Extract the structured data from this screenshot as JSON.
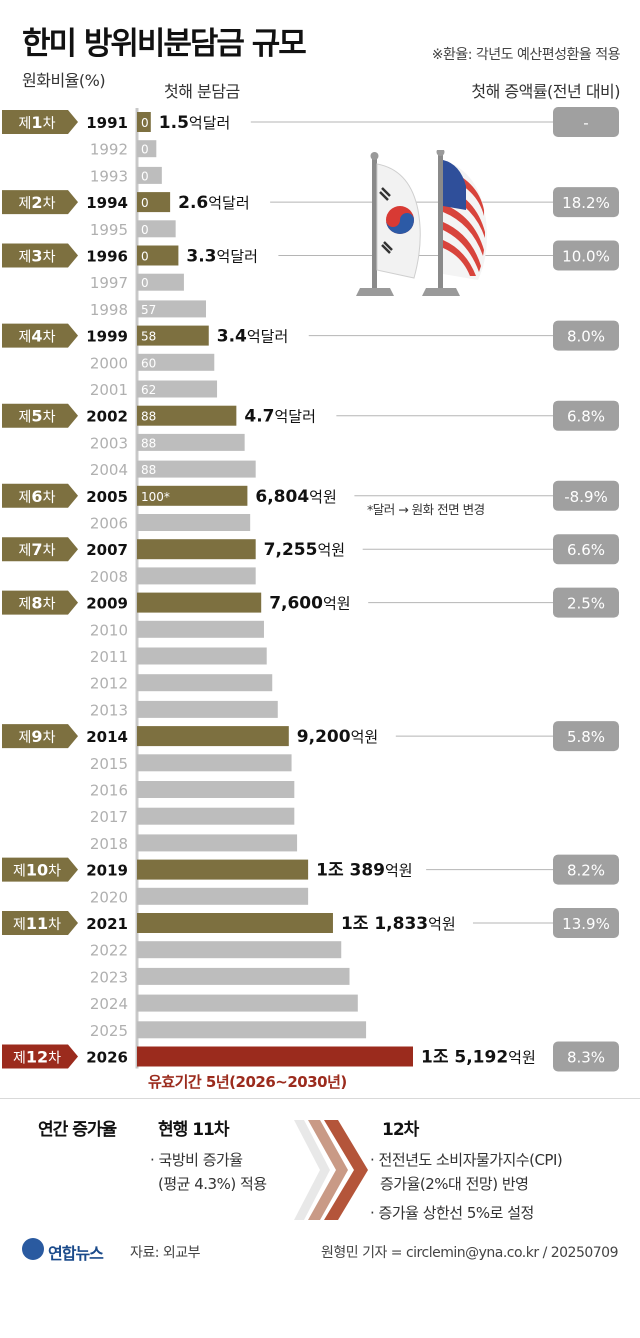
{
  "title": "한미 방위비분담금 규모",
  "exchange_note": "※환율: 각년도 예산편성환율 적용",
  "headers": {
    "won_ratio": "원화비율(%)",
    "first_year_amount": "첫해 분담금",
    "first_year_increase": "첫해 증액률(전년 대비)"
  },
  "cpi_note": "*달러 → 원화 전면 변경",
  "validity": "유효기간 5년(2026~2030년)",
  "footer_box": {
    "left_title": "연간 증가율",
    "current_title": "현행 11차",
    "current_lines": [
      "· 국방비 증가율",
      "(평균 4.3%) 적용"
    ],
    "new_title": "12차",
    "new_lines": [
      "· 전전년도 소비자물가지수(CPI)",
      "증가율(2%대 전망) 반영",
      "· 증가율 상한선 5%로 설정"
    ]
  },
  "source": "자료: 외교부",
  "credit": "원형민 기자 = circlemin@yna.co.kr / 20250709",
  "logo": "연합뉴스",
  "colors": {
    "agreement_bar": "#7d7040",
    "agreement_tag": "#7d7040",
    "latest_bar": "#9b2b1d",
    "other_bar": "#bdbdbd",
    "year_grey": "#b0b0b0",
    "pill": "#a0a0a0"
  },
  "chart_data": {
    "type": "bar",
    "orientation": "horizontal",
    "axis_label": "원화비율(%)",
    "rows": [
      {
        "year": "1991",
        "label": "제1차",
        "ratio": "0",
        "amount_num": "1.5",
        "amount_unit": "억달러",
        "increase": "-",
        "rel": 5
      },
      {
        "year": "1992",
        "label": "",
        "ratio": "0",
        "rel": 7
      },
      {
        "year": "1993",
        "label": "",
        "ratio": "0",
        "rel": 9
      },
      {
        "year": "1994",
        "label": "제2차",
        "ratio": "0",
        "amount_num": "2.6",
        "amount_unit": "억달러",
        "increase": "18.2%",
        "rel": 12
      },
      {
        "year": "1995",
        "label": "",
        "ratio": "0",
        "rel": 14
      },
      {
        "year": "1996",
        "label": "제3차",
        "ratio": "0",
        "amount_num": "3.3",
        "amount_unit": "억달러",
        "increase": "10.0%",
        "rel": 15
      },
      {
        "year": "1997",
        "label": "",
        "ratio": "0",
        "rel": 17
      },
      {
        "year": "1998",
        "label": "",
        "ratio": "57",
        "rel": 25
      },
      {
        "year": "1999",
        "label": "제4차",
        "ratio": "58",
        "amount_num": "3.4",
        "amount_unit": "억달러",
        "increase": "8.0%",
        "rel": 26
      },
      {
        "year": "2000",
        "label": "",
        "ratio": "60",
        "rel": 28
      },
      {
        "year": "2001",
        "label": "",
        "ratio": "62",
        "rel": 29
      },
      {
        "year": "2002",
        "label": "제5차",
        "ratio": "88",
        "amount_num": "4.7",
        "amount_unit": "억달러",
        "increase": "6.8%",
        "rel": 36
      },
      {
        "year": "2003",
        "label": "",
        "ratio": "88",
        "rel": 39
      },
      {
        "year": "2004",
        "label": "",
        "ratio": "88",
        "rel": 43
      },
      {
        "year": "2005",
        "label": "제6차",
        "ratio": "100*",
        "amount_num": "6,804",
        "amount_unit": "억원",
        "increase": "-8.9%",
        "rel": 40
      },
      {
        "year": "2006",
        "label": "",
        "ratio": "",
        "rel": 41
      },
      {
        "year": "2007",
        "label": "제7차",
        "ratio": "",
        "amount_num": "7,255",
        "amount_unit": "억원",
        "increase": "6.6%",
        "rel": 43
      },
      {
        "year": "2008",
        "label": "",
        "ratio": "",
        "rel": 43
      },
      {
        "year": "2009",
        "label": "제8차",
        "ratio": "",
        "amount_num": "7,600",
        "amount_unit": "억원",
        "increase": "2.5%",
        "rel": 45
      },
      {
        "year": "2010",
        "label": "",
        "ratio": "",
        "rel": 46
      },
      {
        "year": "2011",
        "label": "",
        "ratio": "",
        "rel": 47
      },
      {
        "year": "2012",
        "label": "",
        "ratio": "",
        "rel": 49
      },
      {
        "year": "2013",
        "label": "",
        "ratio": "",
        "rel": 51
      },
      {
        "year": "2014",
        "label": "제9차",
        "ratio": "",
        "amount_num": "9,200",
        "amount_unit": "억원",
        "increase": "5.8%",
        "rel": 55
      },
      {
        "year": "2015",
        "label": "",
        "ratio": "",
        "rel": 56
      },
      {
        "year": "2016",
        "label": "",
        "ratio": "",
        "rel": 57
      },
      {
        "year": "2017",
        "label": "",
        "ratio": "",
        "rel": 57
      },
      {
        "year": "2018",
        "label": "",
        "ratio": "",
        "rel": 58
      },
      {
        "year": "2019",
        "label": "제10차",
        "ratio": "",
        "amount_num": "1조 389",
        "amount_unit": "억원",
        "increase": "8.2%",
        "rel": 62
      },
      {
        "year": "2020",
        "label": "",
        "ratio": "",
        "rel": 62
      },
      {
        "year": "2021",
        "label": "제11차",
        "ratio": "",
        "amount_num": "1조 1,833",
        "amount_unit": "억원",
        "increase": "13.9%",
        "rel": 71
      },
      {
        "year": "2022",
        "label": "",
        "ratio": "",
        "rel": 74
      },
      {
        "year": "2023",
        "label": "",
        "ratio": "",
        "rel": 77
      },
      {
        "year": "2024",
        "label": "",
        "ratio": "",
        "rel": 80
      },
      {
        "year": "2025",
        "label": "",
        "ratio": "",
        "rel": 83
      },
      {
        "year": "2026",
        "label": "제12차",
        "ratio": "",
        "amount_num": "1조 5,192",
        "amount_unit": "억원",
        "increase": "8.3%",
        "rel": 100
      }
    ]
  }
}
